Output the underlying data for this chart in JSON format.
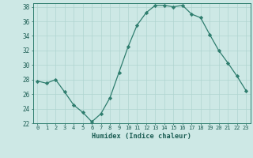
{
  "x": [
    0,
    1,
    2,
    3,
    4,
    5,
    6,
    7,
    8,
    9,
    10,
    11,
    12,
    13,
    14,
    15,
    16,
    17,
    18,
    19,
    20,
    21,
    22,
    23
  ],
  "y": [
    27.8,
    27.5,
    28.0,
    26.3,
    24.5,
    23.5,
    22.2,
    23.3,
    25.5,
    29.0,
    32.5,
    35.5,
    37.2,
    38.2,
    38.2,
    38.0,
    38.2,
    37.0,
    36.5,
    34.2,
    32.0,
    30.3,
    28.5,
    26.5
  ],
  "xlabel": "Humidex (Indice chaleur)",
  "ylim": [
    22,
    38.5
  ],
  "xlim": [
    -0.5,
    23.5
  ],
  "yticks": [
    22,
    24,
    26,
    28,
    30,
    32,
    34,
    36,
    38
  ],
  "xticks": [
    0,
    1,
    2,
    3,
    4,
    5,
    6,
    7,
    8,
    9,
    10,
    11,
    12,
    13,
    14,
    15,
    16,
    17,
    18,
    19,
    20,
    21,
    22,
    23
  ],
  "line_color": "#2e7d6e",
  "marker_color": "#2e7d6e",
  "bg_color": "#cde8e5",
  "grid_color": "#b0d4d0",
  "axis_color": "#2e7d6e",
  "label_color": "#1a5c52",
  "font_family": "monospace"
}
